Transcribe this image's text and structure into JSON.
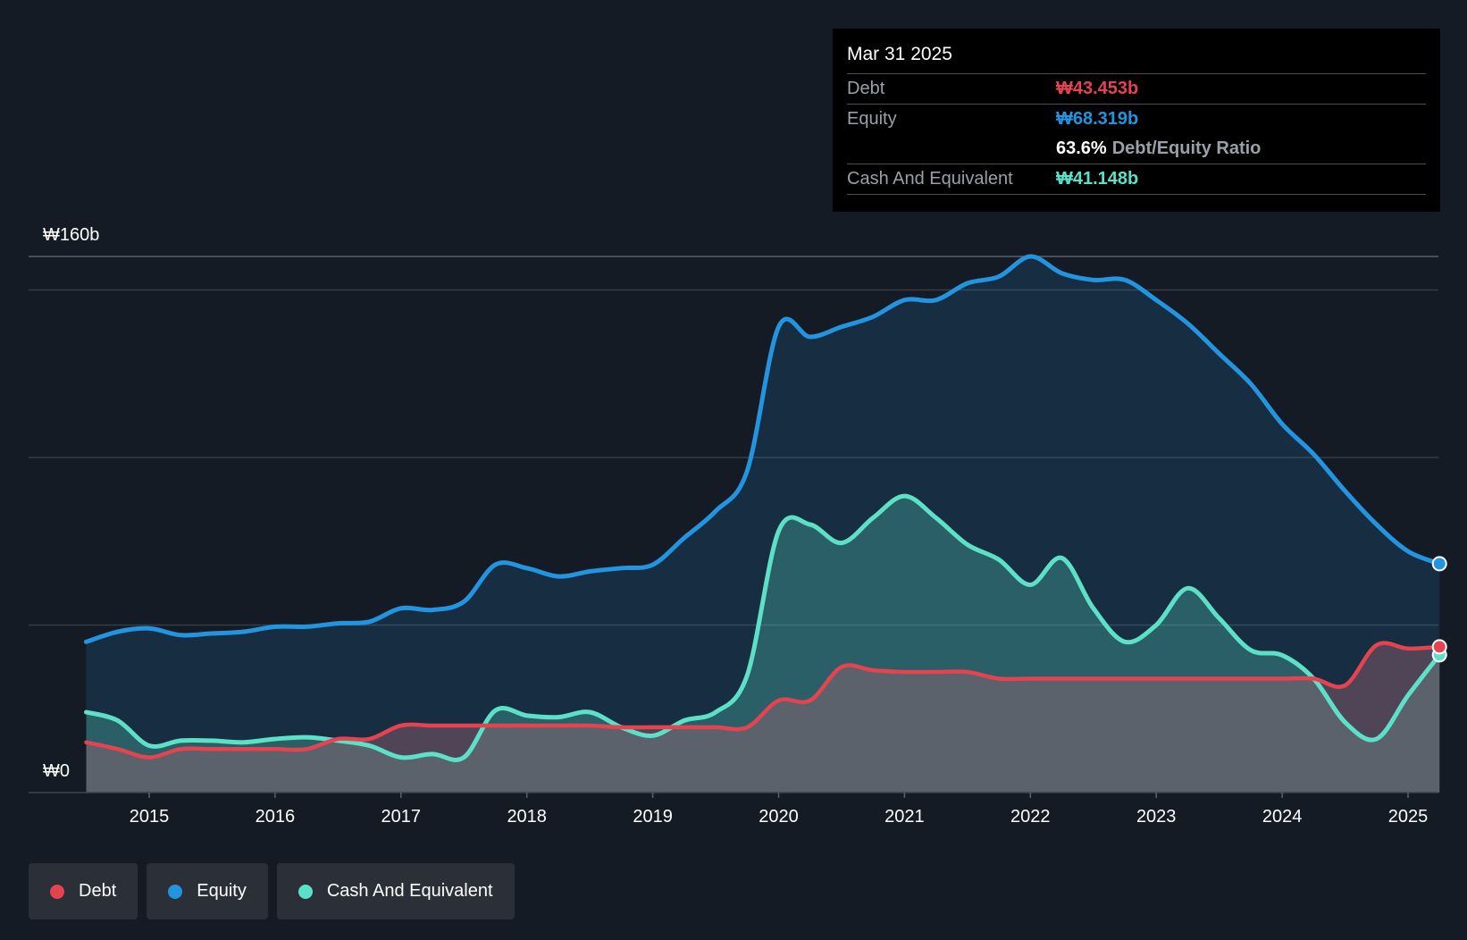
{
  "tooltip": {
    "date": "Mar 31 2025",
    "debt_label": "Debt",
    "debt_value": "₩43.453b",
    "equity_label": "Equity",
    "equity_value": "₩68.319b",
    "ratio_value": "63.6%",
    "ratio_label": "Debt/Equity Ratio",
    "cash_label": "Cash And Equivalent",
    "cash_value": "₩41.148b"
  },
  "legend": [
    {
      "label": "Debt",
      "color": "#e5434f"
    },
    {
      "label": "Equity",
      "color": "#2394df"
    },
    {
      "label": "Cash And Equivalent",
      "color": "#5de0c8"
    }
  ],
  "chart_data": {
    "type": "area",
    "y_top_label": "₩160b",
    "y_bottom_label": "₩0",
    "ylim": [
      0,
      160
    ],
    "xlim": [
      2014.5,
      2025.25
    ],
    "x_ticks": [
      "2015",
      "2016",
      "2017",
      "2018",
      "2019",
      "2020",
      "2021",
      "2022",
      "2023",
      "2024",
      "2025"
    ],
    "gridlines": [
      0,
      50,
      100,
      150,
      160
    ],
    "series": [
      {
        "name": "Equity",
        "color": "#2394df",
        "points": [
          [
            2014.5,
            45
          ],
          [
            2014.75,
            48
          ],
          [
            2015.0,
            49
          ],
          [
            2015.25,
            47
          ],
          [
            2015.5,
            47.5
          ],
          [
            2015.75,
            48
          ],
          [
            2016.0,
            49.5
          ],
          [
            2016.25,
            49.5
          ],
          [
            2016.5,
            50.5
          ],
          [
            2016.75,
            51
          ],
          [
            2017.0,
            55
          ],
          [
            2017.25,
            54.5
          ],
          [
            2017.5,
            57
          ],
          [
            2017.75,
            68
          ],
          [
            2018.0,
            67
          ],
          [
            2018.25,
            64.5
          ],
          [
            2018.5,
            66
          ],
          [
            2018.75,
            67
          ],
          [
            2019.0,
            68
          ],
          [
            2019.25,
            76
          ],
          [
            2019.5,
            84
          ],
          [
            2019.75,
            96
          ],
          [
            2020.0,
            139
          ],
          [
            2020.25,
            136
          ],
          [
            2020.5,
            139
          ],
          [
            2020.75,
            142
          ],
          [
            2021.0,
            147
          ],
          [
            2021.25,
            147
          ],
          [
            2021.5,
            152
          ],
          [
            2021.75,
            154
          ],
          [
            2022.0,
            160
          ],
          [
            2022.25,
            155
          ],
          [
            2022.5,
            153
          ],
          [
            2022.75,
            153
          ],
          [
            2023.0,
            147
          ],
          [
            2023.25,
            140
          ],
          [
            2023.5,
            131
          ],
          [
            2023.75,
            122
          ],
          [
            2024.0,
            110
          ],
          [
            2024.25,
            101
          ],
          [
            2024.5,
            90
          ],
          [
            2024.75,
            80
          ],
          [
            2025.0,
            72
          ],
          [
            2025.25,
            68.3
          ]
        ]
      },
      {
        "name": "Cash And Equivalent",
        "color": "#5de0c8",
        "points": [
          [
            2014.5,
            24
          ],
          [
            2014.75,
            21.5
          ],
          [
            2015.0,
            14
          ],
          [
            2015.25,
            15.5
          ],
          [
            2015.5,
            15.5
          ],
          [
            2015.75,
            15
          ],
          [
            2016.0,
            16
          ],
          [
            2016.25,
            16.5
          ],
          [
            2016.5,
            15.5
          ],
          [
            2016.75,
            14
          ],
          [
            2017.0,
            10.5
          ],
          [
            2017.25,
            11.5
          ],
          [
            2017.5,
            10.5
          ],
          [
            2017.75,
            24.5
          ],
          [
            2018.0,
            23
          ],
          [
            2018.25,
            22.5
          ],
          [
            2018.5,
            24
          ],
          [
            2018.75,
            19.5
          ],
          [
            2019.0,
            17
          ],
          [
            2019.25,
            21.5
          ],
          [
            2019.5,
            24
          ],
          [
            2019.75,
            35
          ],
          [
            2020.0,
            78
          ],
          [
            2020.25,
            80
          ],
          [
            2020.5,
            74.5
          ],
          [
            2020.75,
            82
          ],
          [
            2021.0,
            88.5
          ],
          [
            2021.25,
            82
          ],
          [
            2021.5,
            74
          ],
          [
            2021.75,
            69.5
          ],
          [
            2022.0,
            62
          ],
          [
            2022.25,
            70
          ],
          [
            2022.5,
            55
          ],
          [
            2022.75,
            45
          ],
          [
            2023.0,
            50
          ],
          [
            2023.25,
            61
          ],
          [
            2023.5,
            52
          ],
          [
            2023.75,
            42.5
          ],
          [
            2024.0,
            41
          ],
          [
            2024.25,
            34
          ],
          [
            2024.5,
            21
          ],
          [
            2024.75,
            16
          ],
          [
            2025.0,
            29
          ],
          [
            2025.25,
            41.1
          ]
        ]
      },
      {
        "name": "Debt",
        "color": "#e5434f",
        "points": [
          [
            2014.5,
            15
          ],
          [
            2014.75,
            13
          ],
          [
            2015.0,
            10.5
          ],
          [
            2015.25,
            13
          ],
          [
            2015.5,
            13
          ],
          [
            2015.75,
            13
          ],
          [
            2016.0,
            13
          ],
          [
            2016.25,
            13
          ],
          [
            2016.5,
            16
          ],
          [
            2016.75,
            16
          ],
          [
            2017.0,
            20
          ],
          [
            2017.25,
            20
          ],
          [
            2017.5,
            20
          ],
          [
            2017.75,
            20
          ],
          [
            2018.0,
            20
          ],
          [
            2018.25,
            20
          ],
          [
            2018.5,
            20
          ],
          [
            2018.75,
            19.5
          ],
          [
            2019.0,
            19.5
          ],
          [
            2019.25,
            19.5
          ],
          [
            2019.5,
            19.5
          ],
          [
            2019.75,
            19.5
          ],
          [
            2020.0,
            27.5
          ],
          [
            2020.25,
            27.5
          ],
          [
            2020.5,
            37.5
          ],
          [
            2020.75,
            36.5
          ],
          [
            2021.0,
            36
          ],
          [
            2021.25,
            36
          ],
          [
            2021.5,
            36
          ],
          [
            2021.75,
            34
          ],
          [
            2022.0,
            34
          ],
          [
            2022.25,
            34
          ],
          [
            2022.5,
            34
          ],
          [
            2022.75,
            34
          ],
          [
            2023.0,
            34
          ],
          [
            2023.25,
            34
          ],
          [
            2023.5,
            34
          ],
          [
            2023.75,
            34
          ],
          [
            2024.0,
            34
          ],
          [
            2024.25,
            34
          ],
          [
            2024.5,
            32
          ],
          [
            2024.75,
            44
          ],
          [
            2025.0,
            43
          ],
          [
            2025.25,
            43.5
          ]
        ]
      }
    ]
  }
}
